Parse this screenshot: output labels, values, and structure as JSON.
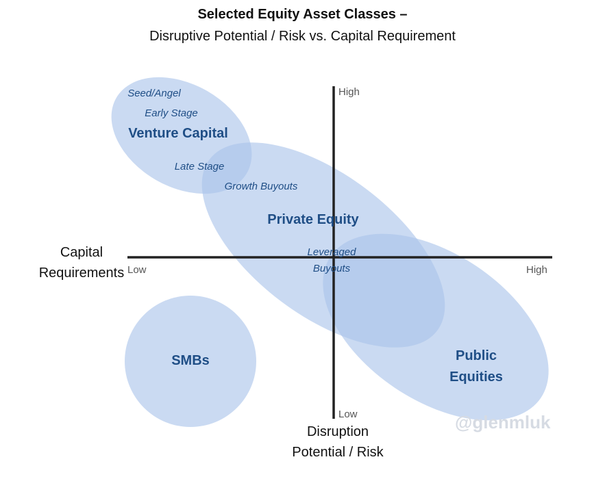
{
  "title": {
    "line1": "Selected Equity Asset Classes –",
    "line2": "Disruptive Potential / Risk vs. Capital Requirement"
  },
  "x_axis": {
    "title_line1": "Capital",
    "title_line2": "Requirements",
    "low": "Low",
    "high": "High"
  },
  "y_axis": {
    "title_line1": "Disruption",
    "title_line2": "Potential / Risk",
    "low": "Low",
    "high": "High"
  },
  "groups": {
    "venture_capital": "Venture Capital",
    "private_equity": "Private Equity",
    "public_equities_line1": "Public",
    "public_equities_line2": "Equities",
    "smbs": "SMBs"
  },
  "sub_labels": {
    "seed_angel": "Seed/Angel",
    "early_stage": "Early Stage",
    "late_stage": "Late Stage",
    "growth_buyouts": "Growth Buyouts",
    "leveraged_line1": "Leveraged",
    "leveraged_line2": "Buyouts"
  },
  "watermark": "@glenmluk",
  "colors": {
    "ellipse_fill": "#a9c4ea",
    "label_blue": "#1f4e86",
    "axis": "#222222"
  }
}
